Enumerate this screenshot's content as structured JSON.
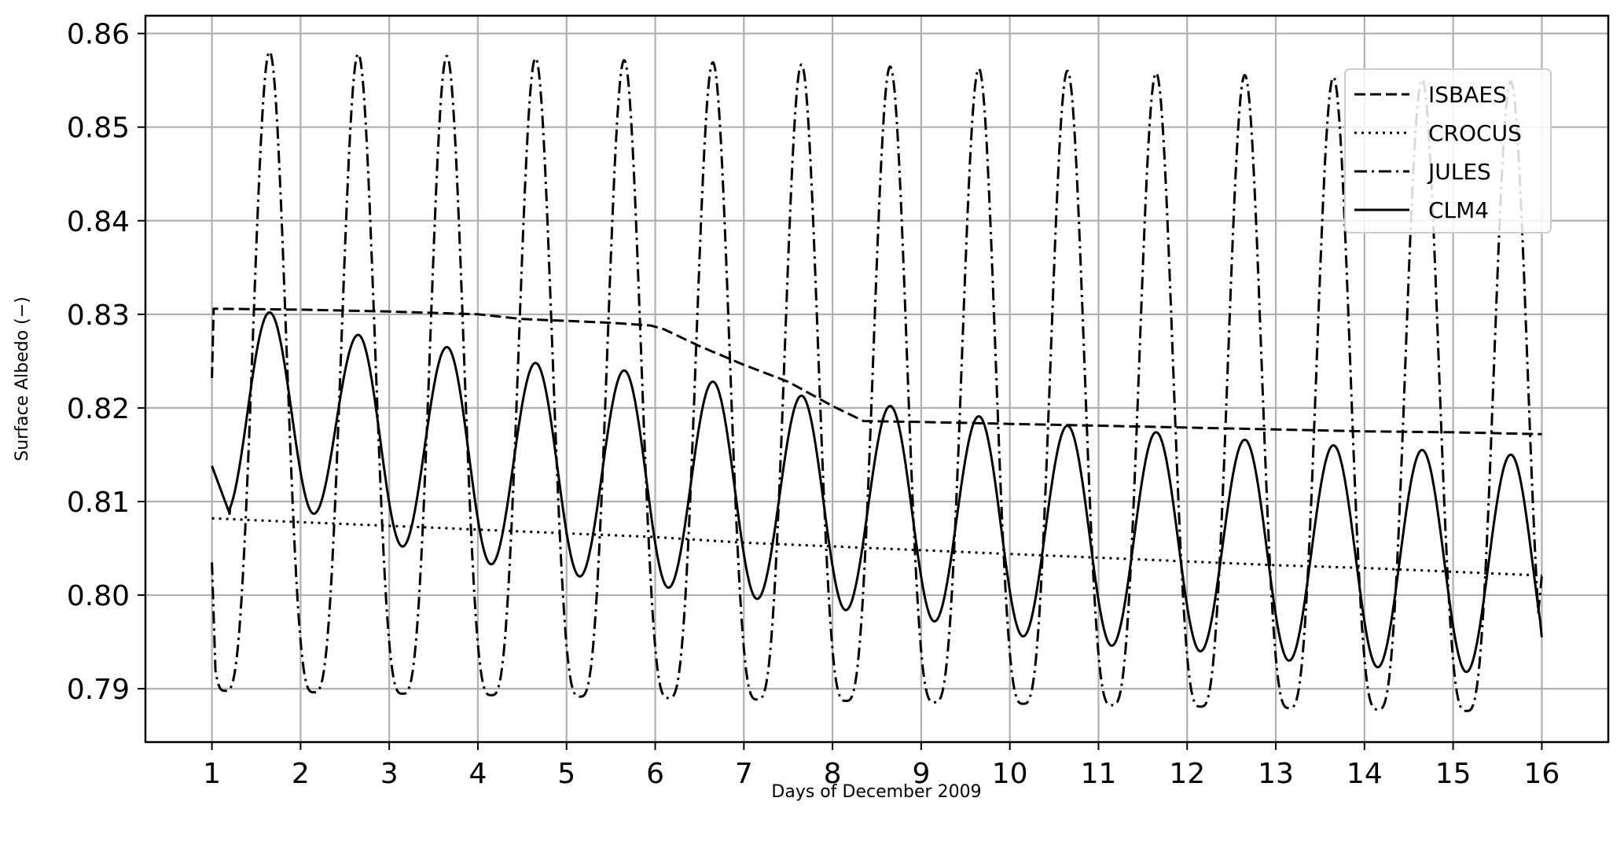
{
  "chart_data": {
    "type": "line",
    "title": "",
    "xlabel": "Days of December 2009",
    "ylabel": "Surface Albedo (−)",
    "xlim": [
      0.25,
      16.75
    ],
    "ylim": [
      0.7843,
      0.8619
    ],
    "x_ticks": [
      1,
      2,
      3,
      4,
      5,
      6,
      7,
      8,
      9,
      10,
      11,
      12,
      13,
      14,
      15,
      16
    ],
    "x_tick_labels": [
      "1",
      "2",
      "3",
      "4",
      "5",
      "6",
      "7",
      "8",
      "9",
      "10",
      "11",
      "12",
      "13",
      "14",
      "15",
      "16"
    ],
    "y_ticks": [
      0.79,
      0.8,
      0.81,
      0.82,
      0.83,
      0.84,
      0.85,
      0.86
    ],
    "y_tick_labels": [
      "0.79",
      "0.80",
      "0.81",
      "0.82",
      "0.83",
      "0.84",
      "0.85",
      "0.86"
    ],
    "grid": true,
    "legend_position": "top-right",
    "series": [
      {
        "name": "ISBAES",
        "line_style": "dashed",
        "color": "#000000",
        "points": [
          [
            1.0,
            0.8232
          ],
          [
            1.02,
            0.8306
          ],
          [
            2,
            0.8305
          ],
          [
            3,
            0.8303
          ],
          [
            4,
            0.83
          ],
          [
            4.5,
            0.8295
          ],
          [
            5,
            0.8293
          ],
          [
            5.5,
            0.8291
          ],
          [
            5.95,
            0.8288
          ],
          [
            6.1,
            0.8284
          ],
          [
            6.5,
            0.8266
          ],
          [
            7,
            0.8246
          ],
          [
            7.5,
            0.8228
          ],
          [
            8,
            0.8202
          ],
          [
            8.35,
            0.8186
          ],
          [
            9,
            0.8185
          ],
          [
            10,
            0.8183
          ],
          [
            11,
            0.8181
          ],
          [
            12,
            0.8179
          ],
          [
            13,
            0.8177
          ],
          [
            14,
            0.8175
          ],
          [
            15,
            0.8174
          ],
          [
            16,
            0.8172
          ]
        ]
      },
      {
        "name": "CROCUS",
        "line_style": "dotted",
        "color": "#000000",
        "points": [
          [
            1,
            0.8082
          ],
          [
            2,
            0.8078
          ],
          [
            3,
            0.8074
          ],
          [
            4,
            0.807
          ],
          [
            5,
            0.8066
          ],
          [
            6,
            0.8062
          ],
          [
            7,
            0.8056
          ],
          [
            8,
            0.8052
          ],
          [
            9,
            0.8048
          ],
          [
            10,
            0.8044
          ],
          [
            11,
            0.804
          ],
          [
            12,
            0.8036
          ],
          [
            13,
            0.8032
          ],
          [
            14,
            0.8029
          ],
          [
            15,
            0.8025
          ],
          [
            16,
            0.8021
          ]
        ]
      },
      {
        "name": "JULES",
        "line_style": "dashdot",
        "color": "#000000",
        "model": {
          "start": 1,
          "end": 16,
          "trough_offset": 0.15,
          "peak_start": 0.8582,
          "peak_end": 0.8548,
          "trough_start": 0.7898,
          "trough_end": 0.7875,
          "shape_power": 1.6
        },
        "points": [
          [
            1.0,
            0.8035
          ],
          [
            1.15,
            0.7898
          ],
          [
            1.65,
            0.8582
          ],
          [
            2.15,
            0.7896
          ],
          [
            2.65,
            0.858
          ],
          [
            3.15,
            0.7894
          ],
          [
            3.65,
            0.8577
          ],
          [
            4.15,
            0.7892
          ],
          [
            4.65,
            0.8574
          ],
          [
            5.15,
            0.789
          ],
          [
            5.65,
            0.857
          ],
          [
            6.15,
            0.7889
          ],
          [
            6.65,
            0.8567
          ],
          [
            7.15,
            0.7887
          ],
          [
            7.65,
            0.8565
          ],
          [
            8.15,
            0.7886
          ],
          [
            8.65,
            0.8562
          ],
          [
            9.15,
            0.7884
          ],
          [
            9.65,
            0.856
          ],
          [
            10.15,
            0.7882
          ],
          [
            10.65,
            0.8558
          ],
          [
            11.15,
            0.788
          ],
          [
            11.65,
            0.8556
          ],
          [
            12.15,
            0.7879
          ],
          [
            12.65,
            0.8554
          ],
          [
            13.15,
            0.7877
          ],
          [
            13.65,
            0.8552
          ],
          [
            14.15,
            0.7876
          ],
          [
            14.65,
            0.855
          ],
          [
            15.15,
            0.7875
          ],
          [
            15.65,
            0.8548
          ],
          [
            16.0,
            0.802
          ]
        ]
      },
      {
        "name": "CLM4",
        "line_style": "solid",
        "color": "#000000",
        "model": {
          "start": 1,
          "end": 16,
          "peak_offset": 0.65,
          "peaks": [
            0.8302,
            0.8278,
            0.8265,
            0.8248,
            0.824,
            0.8228,
            0.8213,
            0.8202,
            0.8191,
            0.8181,
            0.8174,
            0.8166,
            0.816,
            0.8155,
            0.815
          ],
          "troughs": [
            0.8087,
            0.8052,
            0.8033,
            0.802,
            0.8008,
            0.7996,
            0.7984,
            0.7972,
            0.7956,
            0.7946,
            0.794,
            0.793,
            0.7923,
            0.7918,
            0.7912
          ],
          "first_value": 0.8138,
          "last_value": 0.7955
        },
        "points": [
          [
            1.0,
            0.8138
          ],
          [
            1.2,
            0.8087
          ],
          [
            1.65,
            0.8302
          ],
          [
            2.15,
            0.8052
          ],
          [
            2.65,
            0.8278
          ],
          [
            3.15,
            0.8033
          ],
          [
            3.65,
            0.8265
          ],
          [
            4.15,
            0.802
          ],
          [
            4.65,
            0.8248
          ],
          [
            5.15,
            0.8008
          ],
          [
            5.65,
            0.824
          ],
          [
            6.15,
            0.7996
          ],
          [
            6.65,
            0.8228
          ],
          [
            7.15,
            0.7984
          ],
          [
            7.65,
            0.8213
          ],
          [
            8.15,
            0.7972
          ],
          [
            8.65,
            0.8202
          ],
          [
            9.15,
            0.7956
          ],
          [
            9.65,
            0.8191
          ],
          [
            10.15,
            0.7946
          ],
          [
            10.65,
            0.8181
          ],
          [
            11.15,
            0.794
          ],
          [
            11.65,
            0.8174
          ],
          [
            12.15,
            0.793
          ],
          [
            12.65,
            0.8166
          ],
          [
            13.15,
            0.7923
          ],
          [
            13.65,
            0.816
          ],
          [
            14.15,
            0.7918
          ],
          [
            14.65,
            0.8155
          ],
          [
            15.15,
            0.7912
          ],
          [
            15.65,
            0.815
          ],
          [
            16.0,
            0.7955
          ]
        ]
      }
    ]
  }
}
